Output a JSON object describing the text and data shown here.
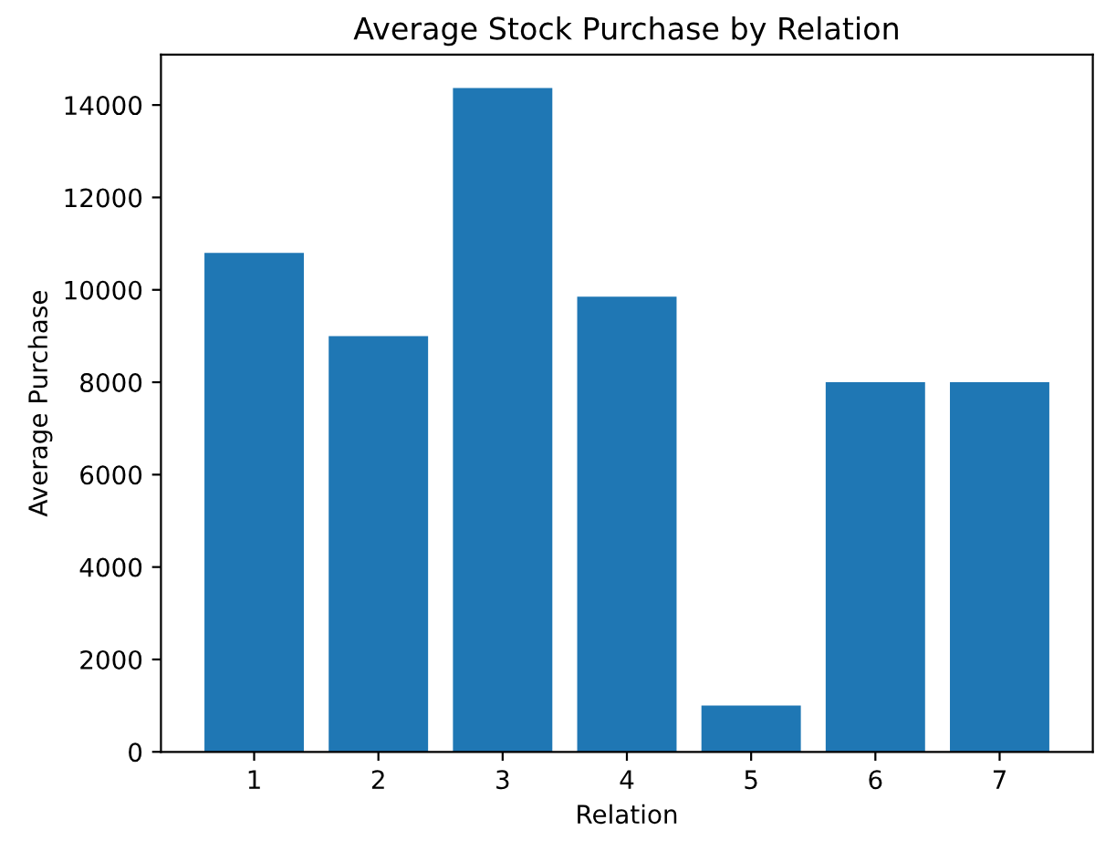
{
  "chart_data": {
    "type": "bar",
    "title": "Average Stock Purchase by Relation",
    "xlabel": "Relation",
    "ylabel": "Average Purchase",
    "categories": [
      "1",
      "2",
      "3",
      "4",
      "5",
      "6",
      "7"
    ],
    "values": [
      10800,
      9000,
      14370,
      9850,
      1000,
      8000,
      8000
    ],
    "color": "#1f77b4",
    "ylim": [
      0,
      15090
    ],
    "yticks": [
      0,
      2000,
      4000,
      6000,
      8000,
      10000,
      12000,
      14000
    ]
  }
}
